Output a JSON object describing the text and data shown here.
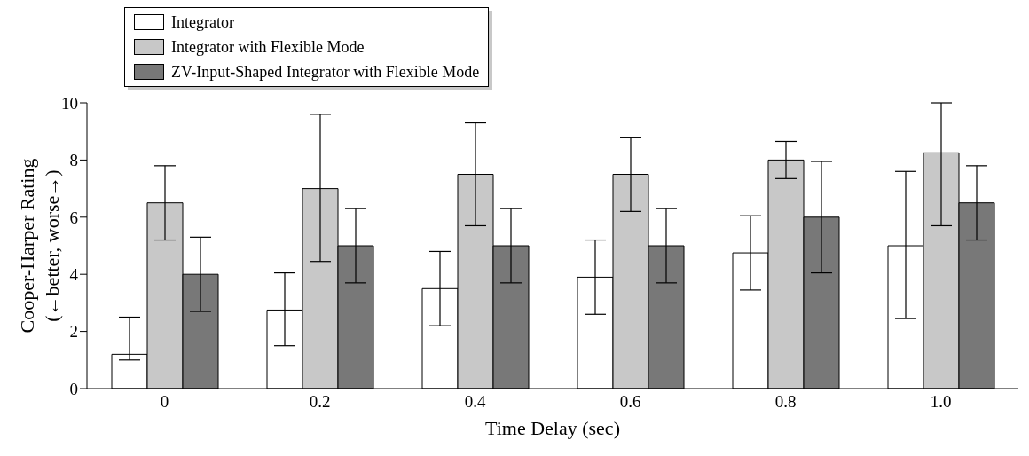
{
  "chart_data": {
    "type": "bar",
    "xlabel": "Time Delay (sec)",
    "ylabel": "Cooper-Harper Rating\n(←better, worse→)",
    "categories": [
      "0",
      "0.2",
      "0.4",
      "0.6",
      "0.8",
      "1.0"
    ],
    "series": [
      {
        "name": "Integrator",
        "color": "#ffffff",
        "values": [
          1.2,
          2.75,
          3.5,
          3.9,
          4.75,
          5.0
        ],
        "errors": [
          [
            1.0,
            2.5
          ],
          [
            1.5,
            4.05
          ],
          [
            2.2,
            4.8
          ],
          [
            2.6,
            5.2
          ],
          [
            3.45,
            6.05
          ],
          [
            2.45,
            7.6
          ]
        ]
      },
      {
        "name": "Integrator with Flexible Mode",
        "color": "#c8c8c8",
        "values": [
          6.5,
          7.0,
          7.5,
          7.5,
          8.0,
          8.25
        ],
        "errors": [
          [
            5.2,
            7.8
          ],
          [
            4.45,
            9.6
          ],
          [
            5.7,
            9.3
          ],
          [
            6.2,
            8.8
          ],
          [
            7.35,
            8.65
          ],
          [
            5.7,
            10.0
          ]
        ]
      },
      {
        "name": "ZV-Input-Shaped Integrator with Flexible Mode",
        "color": "#787878",
        "values": [
          4.0,
          5.0,
          5.0,
          5.0,
          6.0,
          6.5
        ],
        "errors": [
          [
            2.7,
            5.3
          ],
          [
            3.7,
            6.3
          ],
          [
            3.7,
            6.3
          ],
          [
            3.7,
            6.3
          ],
          [
            4.05,
            7.95
          ],
          [
            5.2,
            7.8
          ]
        ]
      }
    ],
    "ylim": [
      0,
      10
    ],
    "yticks": [
      0,
      2,
      4,
      6,
      8,
      10
    ],
    "legend": "top left"
  }
}
